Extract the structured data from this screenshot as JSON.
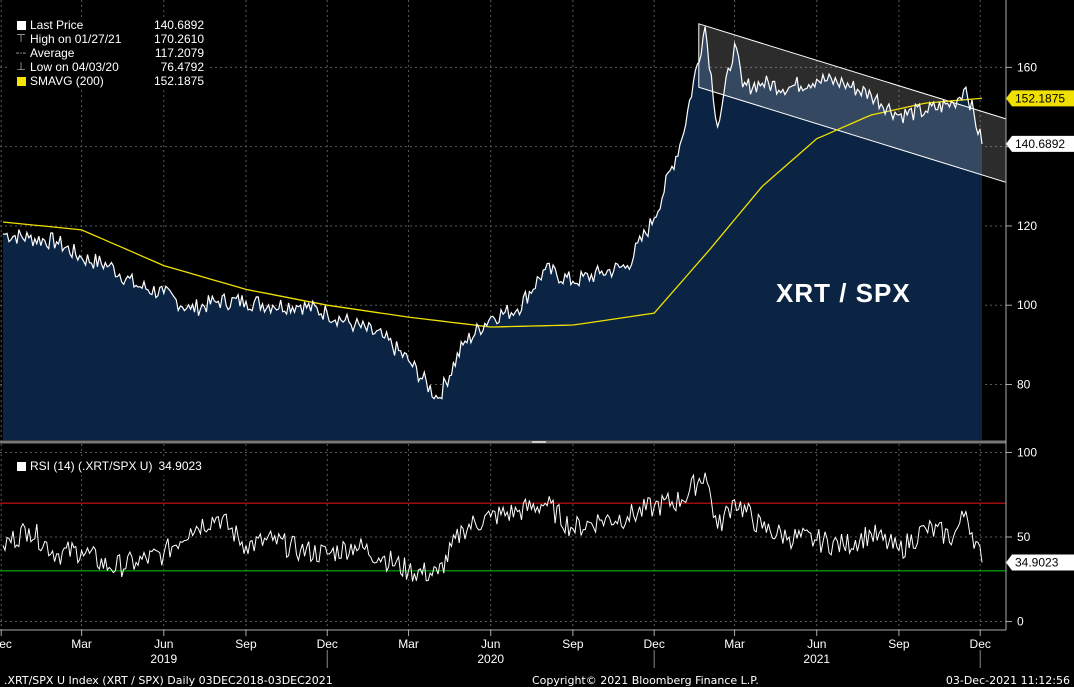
{
  "legend_main": {
    "items": [
      {
        "label": "Last Price",
        "value": "140.6892",
        "color": "#ffffff",
        "icon": "white-square-icon"
      },
      {
        "label": "High on 01/27/21",
        "value": "170.2610",
        "color": "#bbbbbb",
        "icon": "high-marker-icon"
      },
      {
        "label": "Average",
        "value": "117.2079",
        "color": "#bbbbbb",
        "icon": "average-line-icon"
      },
      {
        "label": "Low on 04/03/20",
        "value": "76.4792",
        "color": "#bbbbbb",
        "icon": "low-marker-icon"
      },
      {
        "label": "SMAVG (200)",
        "value": "152.1875",
        "color": "#f5e400",
        "icon": "yellow-square-icon"
      }
    ]
  },
  "legend_rsi": {
    "label": "RSI (14) (.XRT/SPX U)",
    "value": "34.9023"
  },
  "overlay_label": "XRT / SPX",
  "footer": {
    "left": ".XRT/SPX U Index (XRT / SPX)  Daily 03DEC2018-03DEC2021",
    "center": "Copyright© 2021 Bloomberg Finance L.P.",
    "right": "03-Dec-2021 11:12:56"
  },
  "colors": {
    "background": "#000000",
    "area_fill": "#0c2444",
    "price_line": "#ffffff",
    "sma_line": "#f0e000",
    "rsi_upper": "#d01010",
    "rsi_lower": "#00b400",
    "grid": "#5a5a5a"
  },
  "chart_data": [
    {
      "type": "area",
      "title": "XRT / SPX",
      "x_range": [
        "2018-12-03",
        "2021-12-03"
      ],
      "ylim": [
        66,
        177
      ],
      "y_ticks": [
        80,
        100,
        120,
        140,
        160
      ],
      "x_tick_labels": [
        "Dec",
        "Mar",
        "Jun",
        "Sep",
        "Dec",
        "Mar",
        "Jun",
        "Sep",
        "Dec",
        "Mar",
        "Jun",
        "Sep",
        "Dec"
      ],
      "x_tick_dates": [
        "2018-12-01",
        "2019-03-01",
        "2019-06-01",
        "2019-09-01",
        "2019-12-01",
        "2020-03-01",
        "2020-06-01",
        "2020-09-01",
        "2020-12-01",
        "2021-03-01",
        "2021-06-01",
        "2021-09-01",
        "2021-12-01"
      ],
      "year_labels": [
        "2019",
        "2020",
        "2021"
      ],
      "year_label_dates": [
        "2019-06-01",
        "2020-06-01",
        "2021-06-01"
      ],
      "grid": true,
      "legend_position": "top-left",
      "series": [
        {
          "name": "Last Price",
          "x": [
            "2018-12-03",
            "2019-01-01",
            "2019-02-01",
            "2019-03-01",
            "2019-04-01",
            "2019-05-01",
            "2019-06-01",
            "2019-07-01",
            "2019-08-01",
            "2019-09-01",
            "2019-10-01",
            "2019-11-01",
            "2019-12-01",
            "2020-01-01",
            "2020-02-01",
            "2020-03-01",
            "2020-04-03",
            "2020-05-01",
            "2020-06-01",
            "2020-07-01",
            "2020-08-01",
            "2020-09-01",
            "2020-10-01",
            "2020-11-01",
            "2020-12-01",
            "2021-01-01",
            "2021-01-27",
            "2021-02-10",
            "2021-03-01",
            "2021-03-10",
            "2021-04-01",
            "2021-05-01",
            "2021-06-01",
            "2021-07-01",
            "2021-08-01",
            "2021-09-01",
            "2021-10-01",
            "2021-11-01",
            "2021-11-15",
            "2021-12-03"
          ],
          "values": [
            118,
            117,
            116,
            112,
            110,
            105,
            103,
            99,
            101,
            101,
            100,
            100,
            98,
            95,
            92,
            86,
            76.5,
            90,
            97,
            99,
            109,
            106,
            108,
            110,
            122,
            142,
            170.3,
            145,
            166,
            155,
            156,
            155,
            157,
            156,
            153,
            148,
            149,
            151,
            155,
            140.7
          ]
        },
        {
          "name": "SMAVG (200)",
          "x": [
            "2018-12-03",
            "2019-03-01",
            "2019-06-01",
            "2019-09-01",
            "2019-12-01",
            "2020-03-01",
            "2020-06-01",
            "2020-09-01",
            "2020-12-01",
            "2021-02-01",
            "2021-04-01",
            "2021-06-01",
            "2021-08-01",
            "2021-10-01",
            "2021-12-03"
          ],
          "values": [
            121,
            119,
            110,
            104,
            100,
            97,
            94.5,
            95,
            98,
            114,
            130,
            142,
            148,
            151,
            152.2
          ]
        }
      ],
      "annotations": [
        {
          "label": "152.1875",
          "value": 152.1875
        },
        {
          "label": "140.6892",
          "value": 140.6892
        }
      ]
    },
    {
      "type": "line",
      "title": "RSI (14) (.XRT/SPX U)",
      "ylim": [
        -5,
        105
      ],
      "y_ticks": [
        0,
        50,
        100
      ],
      "reference_lines": [
        70,
        30
      ],
      "series": [
        {
          "name": "RSI (14) (.XRT/SPX U)",
          "x": [
            "2018-12-03",
            "2019-01-01",
            "2019-02-01",
            "2019-03-01",
            "2019-04-01",
            "2019-05-01",
            "2019-06-01",
            "2019-07-01",
            "2019-08-01",
            "2019-09-01",
            "2019-10-01",
            "2019-11-01",
            "2019-12-01",
            "2020-01-01",
            "2020-02-01",
            "2020-03-01",
            "2020-04-03",
            "2020-05-01",
            "2020-06-01",
            "2020-07-01",
            "2020-08-01",
            "2020-09-01",
            "2020-10-01",
            "2020-11-01",
            "2020-12-01",
            "2021-01-01",
            "2021-01-27",
            "2021-02-10",
            "2021-03-01",
            "2021-04-01",
            "2021-05-01",
            "2021-06-01",
            "2021-07-01",
            "2021-08-01",
            "2021-09-01",
            "2021-10-01",
            "2021-11-01",
            "2021-11-15",
            "2021-12-03"
          ],
          "values": [
            45,
            55,
            40,
            42,
            32,
            35,
            40,
            55,
            62,
            45,
            48,
            42,
            40,
            45,
            38,
            30,
            28,
            55,
            62,
            65,
            70,
            55,
            60,
            62,
            68,
            72,
            88,
            55,
            72,
            55,
            50,
            48,
            45,
            52,
            42,
            55,
            50,
            65,
            34.9
          ]
        }
      ],
      "annotations": [
        {
          "label": "34.9023",
          "value": 34.9023
        }
      ]
    }
  ]
}
